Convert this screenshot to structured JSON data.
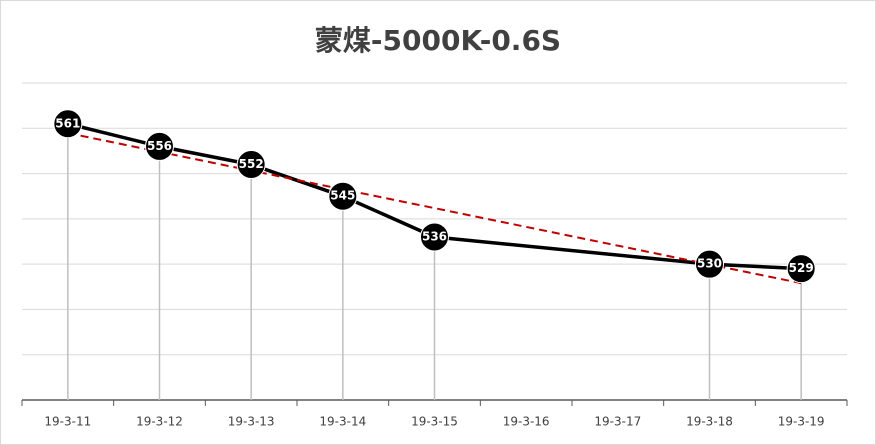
{
  "chart_data": {
    "type": "line",
    "title": "蒙煤-5000K-0.6S",
    "categories": [
      "19-3-11",
      "19-3-12",
      "19-3-13",
      "19-3-14",
      "19-3-15",
      "19-3-16",
      "19-3-17",
      "19-3-18",
      "19-3-19"
    ],
    "series": [
      {
        "color": "#000000",
        "values": [
          561,
          556,
          552,
          545,
          536,
          null,
          null,
          530,
          529
        ]
      }
    ],
    "span_gaps": true,
    "drop_lines": true,
    "trendline": "linear",
    "trendline_color": "#c00000",
    "ylim": [
      500,
      570
    ],
    "yticks": [
      500,
      510,
      520,
      530,
      540,
      550,
      560,
      570
    ],
    "grid": true
  }
}
